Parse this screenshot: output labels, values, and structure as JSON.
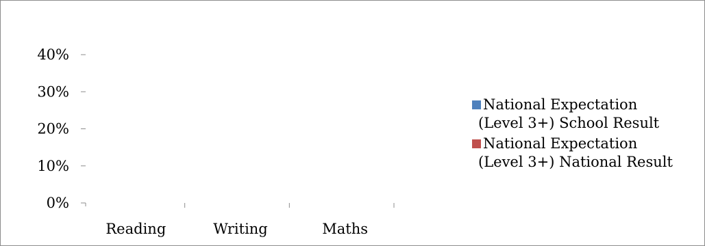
{
  "chart_data": {
    "type": "bar",
    "title": "",
    "xlabel": "",
    "ylabel": "",
    "categories": [
      "Reading",
      "Writing",
      "Maths"
    ],
    "ylim": [
      0,
      0.4
    ],
    "yticks": [
      0,
      0.1,
      0.2,
      0.3,
      0.4
    ],
    "ytick_labels": [
      "0%",
      "10%",
      "20%",
      "30%",
      "40%"
    ],
    "grid": false,
    "legend_placement": "right",
    "series": [
      {
        "name": "National Expectation (Level 3+) School Result",
        "legend_lines": [
          "National Expectation",
          "(Level 3+) School Result"
        ],
        "color": "#4f81bd",
        "values": [
          0,
          0,
          0
        ]
      },
      {
        "name": "National Expectation (Level 3+) National Result",
        "legend_lines": [
          "National Expectation",
          "(Level 3+) National Result"
        ],
        "color": "#c0504d",
        "values": [
          0,
          0,
          0
        ]
      }
    ]
  }
}
